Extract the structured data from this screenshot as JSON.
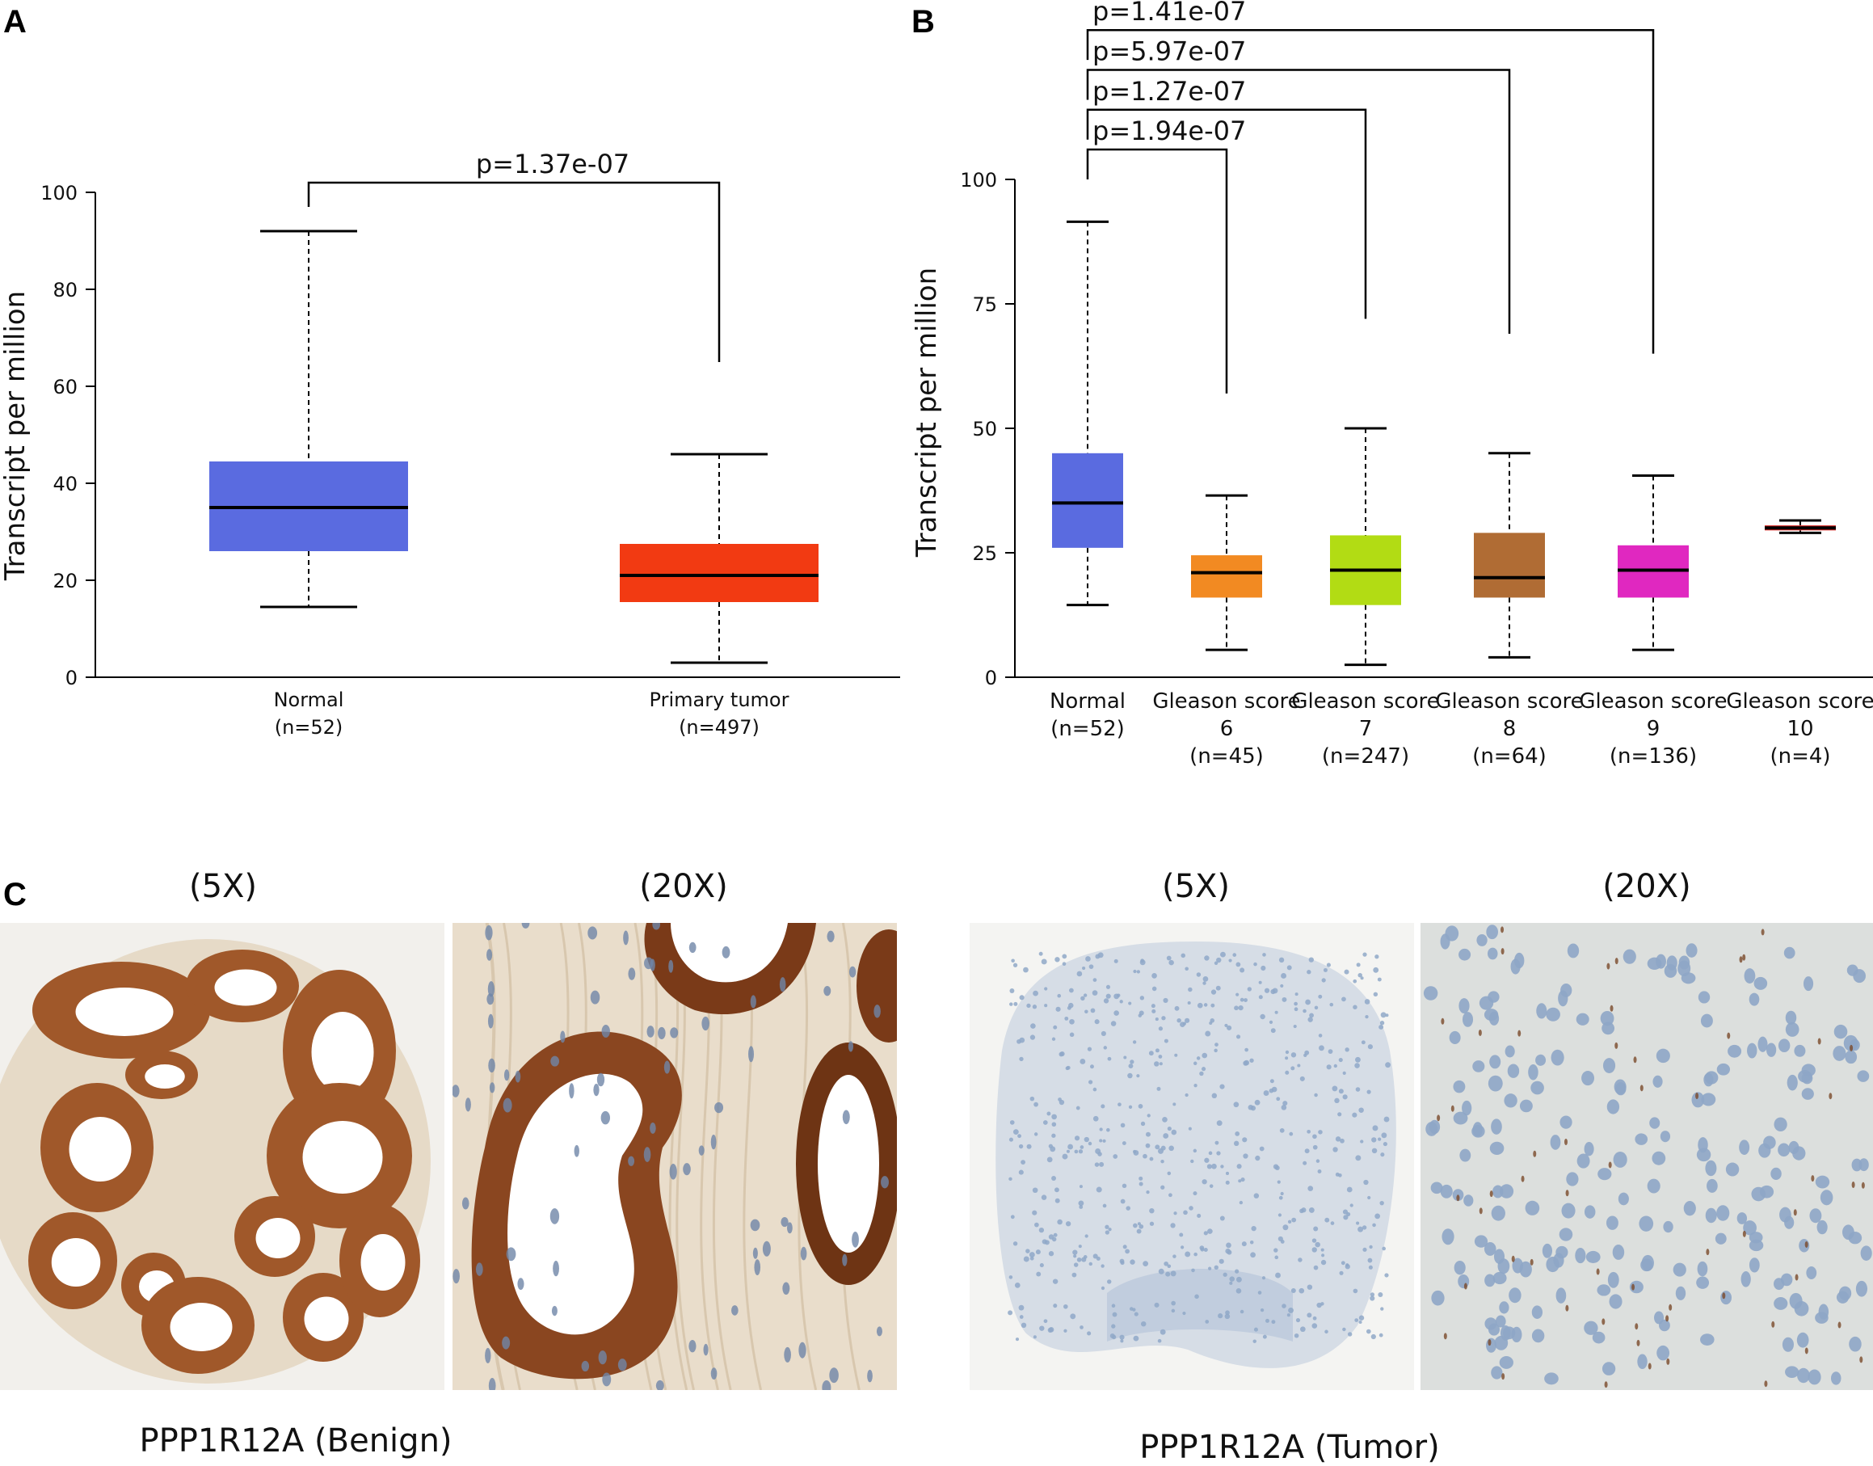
{
  "panels": {
    "A": {
      "letter": "A"
    },
    "B": {
      "letter": "B"
    },
    "C": {
      "letter": "C"
    }
  },
  "chart_data": [
    {
      "type": "box",
      "panel": "A",
      "ylabel": "Transcript per million",
      "ylim": [
        0,
        100
      ],
      "yticks": [
        0,
        20,
        40,
        60,
        80,
        100
      ],
      "grid": false,
      "categories": [
        {
          "label": "Normal",
          "n": "(n=52)",
          "color": "#5A6BE0",
          "min": 14.5,
          "q1": 26,
          "median": 35,
          "q3": 44.5,
          "max": 92
        },
        {
          "label": "Primary tumor",
          "n": "(n=497)",
          "color": "#F23A12",
          "min": 3,
          "q1": 15.5,
          "median": 21,
          "q3": 27.5,
          "max": 46
        }
      ],
      "comparisons": [
        {
          "from": 0,
          "to": 1,
          "label": "p=1.37e-07",
          "y": 102,
          "drop_to": 65,
          "rise_from": 97
        }
      ]
    },
    {
      "type": "box",
      "panel": "B",
      "ylabel": "Transcript per million",
      "ylim": [
        0,
        100
      ],
      "yticks": [
        0,
        25,
        50,
        75,
        100
      ],
      "grid": false,
      "categories": [
        {
          "label": [
            "Normal",
            "(n=52)"
          ],
          "color": "#5A6BE0",
          "min": 14.5,
          "q1": 26,
          "median": 35,
          "q3": 45,
          "max": 91.5
        },
        {
          "label": [
            "Gleason score",
            "6",
            "(n=45)"
          ],
          "color": "#F28A22",
          "min": 5.5,
          "q1": 16,
          "median": 21,
          "q3": 24.5,
          "max": 36.5
        },
        {
          "label": [
            "Gleason score",
            "7",
            "(n=247)"
          ],
          "color": "#B2DC14",
          "min": 2.5,
          "q1": 14.5,
          "median": 21.5,
          "q3": 28.5,
          "max": 50
        },
        {
          "label": [
            "Gleason score",
            "8",
            "(n=64)"
          ],
          "color": "#B06C34",
          "min": 4,
          "q1": 16,
          "median": 20,
          "q3": 29,
          "max": 45
        },
        {
          "label": [
            "Gleason score",
            "9",
            "(n=136)"
          ],
          "color": "#E028C0",
          "min": 5.5,
          "q1": 16,
          "median": 21.5,
          "q3": 26.5,
          "max": 40.5
        },
        {
          "label": [
            "Gleason score",
            "10",
            "(n=4)"
          ],
          "color": "#D62420",
          "min": 29,
          "q1": 29.5,
          "median": 30,
          "q3": 30.5,
          "max": 31.5
        }
      ],
      "comparisons": [
        {
          "from": 0,
          "to": 1,
          "label": "p=1.94e-07",
          "y": 106,
          "drop_to": 57
        },
        {
          "from": 0,
          "to": 2,
          "label": "p=1.27e-07",
          "y": 114,
          "drop_to": 72
        },
        {
          "from": 0,
          "to": 3,
          "label": "p=5.97e-07",
          "y": 122,
          "drop_to": 69
        },
        {
          "from": 0,
          "to": 4,
          "label": "p=1.41e-07",
          "y": 130,
          "drop_to": 65
        }
      ]
    }
  ],
  "histology": {
    "magnifications": [
      "(5X)",
      "(20X)",
      "(5X)",
      "(20X)"
    ],
    "captions": [
      "PPP1R12A (Benign)",
      "PPP1R12A (Tumor)"
    ]
  },
  "colors": {
    "stain_brown": "#A0582A",
    "stain_brown_dark": "#7A3A18",
    "stroma": "#E8DCCB",
    "hematoxylin_blue": "#8FA8C8",
    "tissue_bg_blue": "#DCE2E8"
  }
}
